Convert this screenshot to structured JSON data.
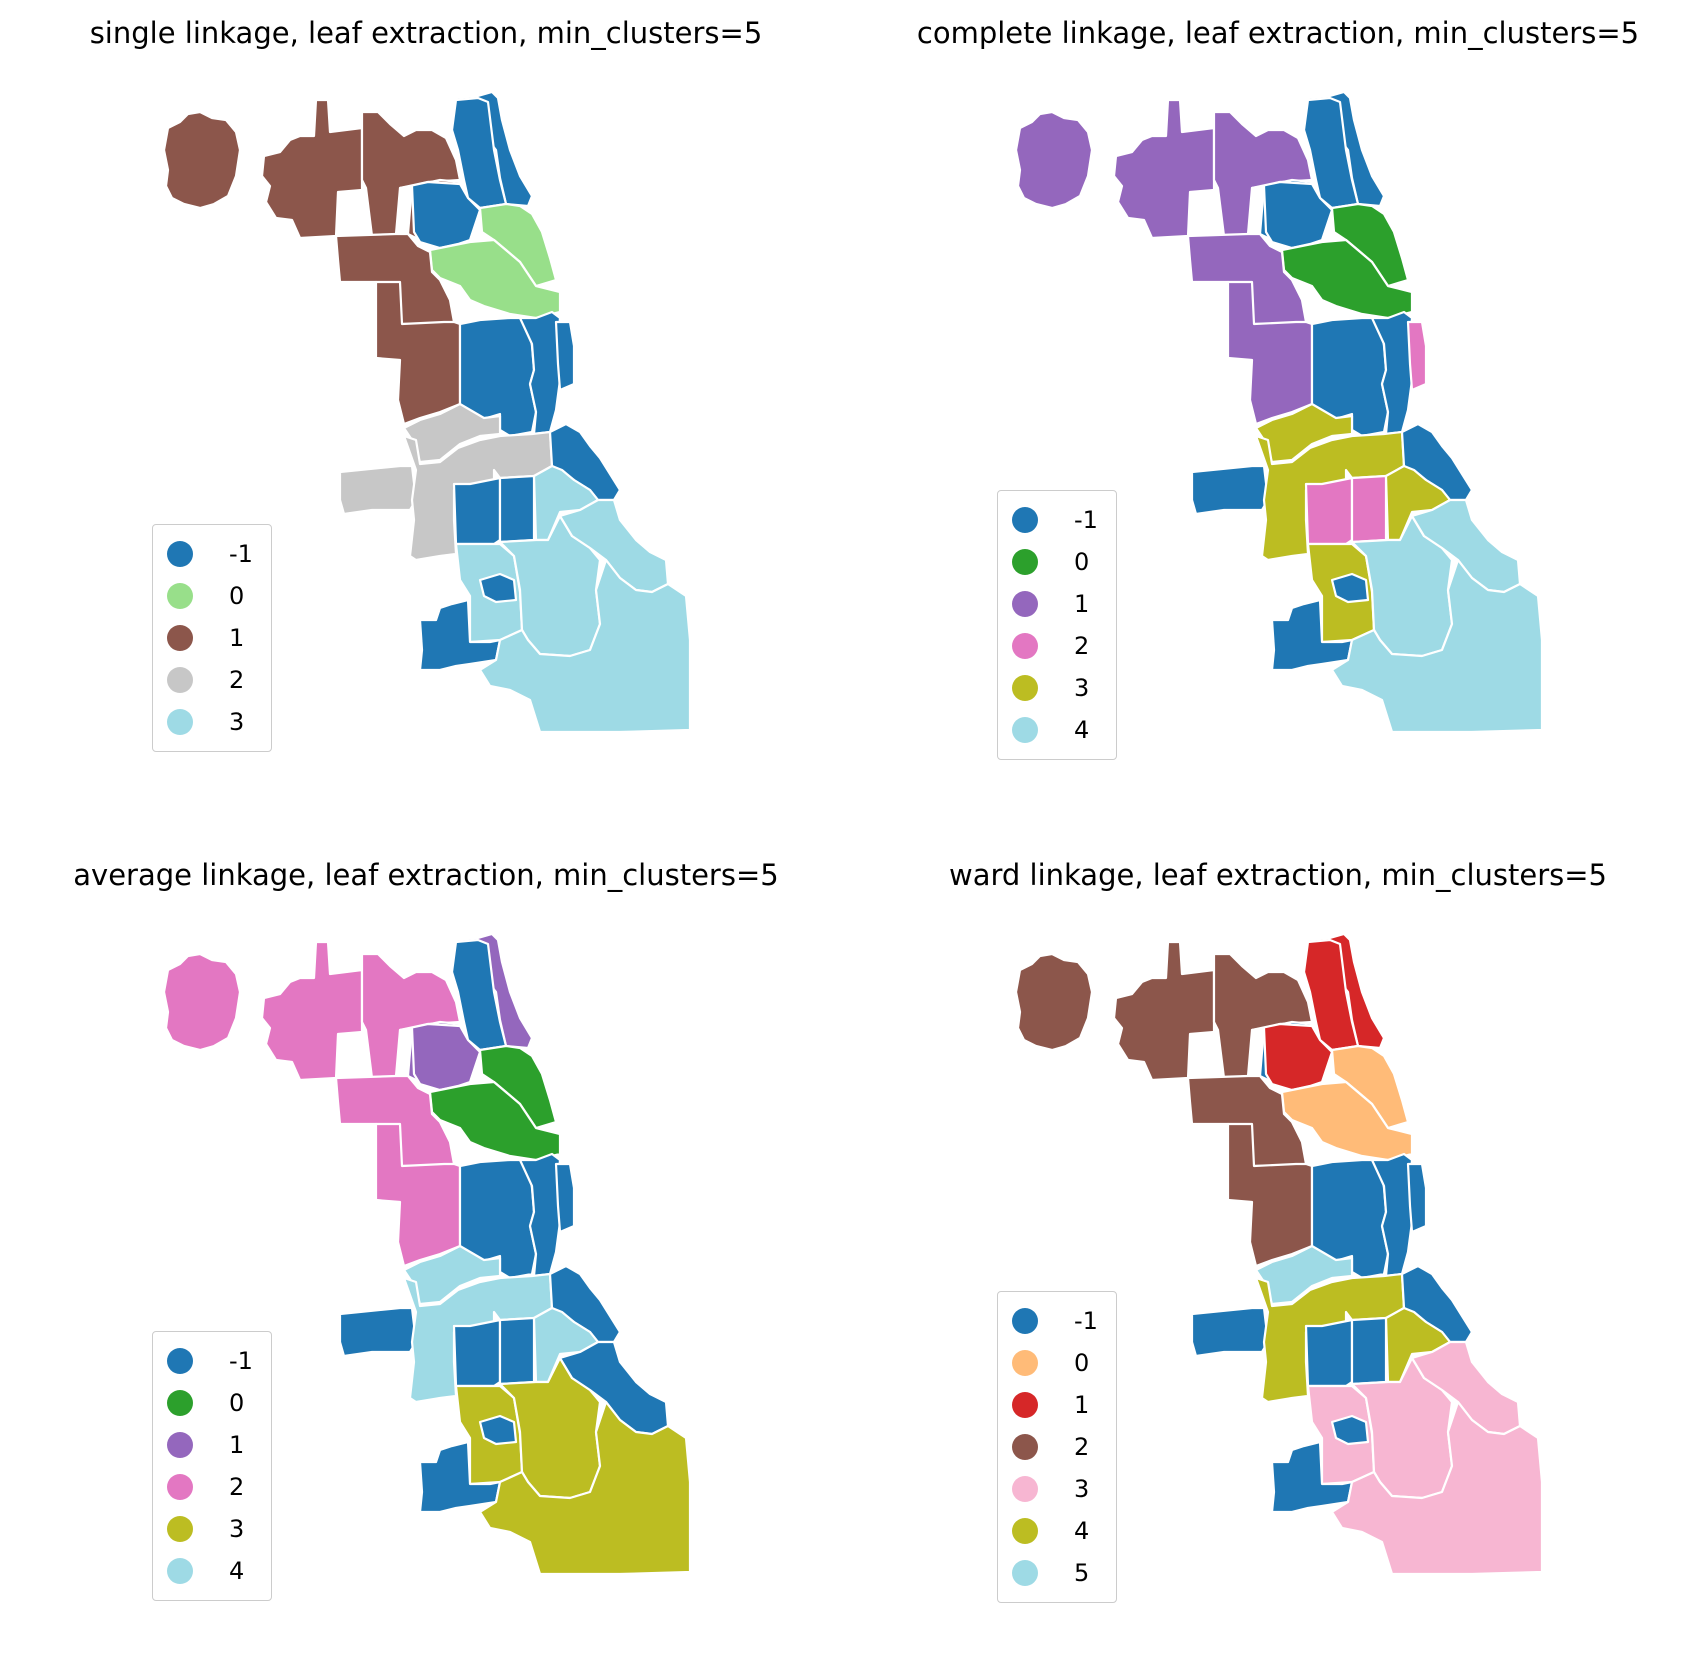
{
  "palette": {
    "-1": "#1f77b4",
    "green_light": "#98df8a",
    "green": "#2ca02c",
    "brown": "#8c564b",
    "grey": "#c7c7c7",
    "cyan": "#9edae5",
    "purple": "#9467bd",
    "pink": "#e377c2",
    "olive": "#bcbd22",
    "orange_light": "#ffbb78",
    "red": "#d62728",
    "pink_light": "#f7b6d2"
  },
  "panels": [
    {
      "title": "single linkage, leaf extraction, min_clusters=5",
      "legend": [
        {
          "label": "-1",
          "color": "#1f77b4"
        },
        {
          "label": "0",
          "color": "#98df8a"
        },
        {
          "label": "1",
          "color": "#8c564b"
        },
        {
          "label": "2",
          "color": "#c7c7c7"
        },
        {
          "label": "3",
          "color": "#9edae5"
        }
      ],
      "regions": {
        "ohare": "#8c564b",
        "nw_west": "#8c564b",
        "nw_mid": "#8c564b",
        "nw_inner": "#8c564b",
        "far_north_lake": "#1f77b4",
        "north_mid": "#1f77b4",
        "north_lake": "#98df8a",
        "north_central_band": "#98df8a",
        "north_inner": "#1f77b4",
        "west_upper": "#8c564b",
        "west_mid": "#8c564b",
        "west_side": "#1f77b4",
        "central": "#1f77b4",
        "loop_lake": "#1f77b4",
        "swest_upper": "#c7c7c7",
        "swest_arm": "#c7c7c7",
        "swest_mid": "#c7c7c7",
        "south_mid_west": "#1f77b4",
        "south_mid_center": "#1f77b4",
        "south_lake_mid": "#1f77b4",
        "south_mid_east": "#9edae5",
        "south_lower_west": "#9edae5",
        "south_lower_mid": "#9edae5",
        "south_lower_east": "#9edae5",
        "far_south_west": "#1f77b4",
        "far_south_east": "#9edae5",
        "far_south_stem": "#1f77b4"
      }
    },
    {
      "title": "complete linkage, leaf extraction, min_clusters=5",
      "legend": [
        {
          "label": "-1",
          "color": "#1f77b4"
        },
        {
          "label": "0",
          "color": "#2ca02c"
        },
        {
          "label": "1",
          "color": "#9467bd"
        },
        {
          "label": "2",
          "color": "#e377c2"
        },
        {
          "label": "3",
          "color": "#bcbd22"
        },
        {
          "label": "4",
          "color": "#9edae5"
        }
      ],
      "regions": {
        "ohare": "#9467bd",
        "nw_west": "#9467bd",
        "nw_mid": "#9467bd",
        "nw_inner": "#1f77b4",
        "far_north_lake": "#1f77b4",
        "north_mid": "#1f77b4",
        "north_lake": "#2ca02c",
        "north_central_band": "#2ca02c",
        "north_inner": "#1f77b4",
        "west_upper": "#9467bd",
        "west_mid": "#9467bd",
        "west_side": "#1f77b4",
        "central": "#1f77b4",
        "loop_lake": "#e377c2",
        "swest_upper": "#bcbd22",
        "swest_arm": "#1f77b4",
        "swest_mid": "#bcbd22",
        "south_mid_west": "#e377c2",
        "south_mid_center": "#e377c2",
        "south_lake_mid": "#1f77b4",
        "south_mid_east": "#bcbd22",
        "south_lower_west": "#bcbd22",
        "south_lower_mid": "#9edae5",
        "south_lower_east": "#9edae5",
        "far_south_west": "#1f77b4",
        "far_south_east": "#9edae5",
        "far_south_stem": "#1f77b4"
      }
    },
    {
      "title": "average linkage, leaf extraction, min_clusters=5",
      "legend": [
        {
          "label": "-1",
          "color": "#1f77b4"
        },
        {
          "label": "0",
          "color": "#2ca02c"
        },
        {
          "label": "1",
          "color": "#9467bd"
        },
        {
          "label": "2",
          "color": "#e377c2"
        },
        {
          "label": "3",
          "color": "#bcbd22"
        },
        {
          "label": "4",
          "color": "#9edae5"
        }
      ],
      "regions": {
        "ohare": "#e377c2",
        "nw_west": "#e377c2",
        "nw_mid": "#e377c2",
        "nw_inner": "#9467bd",
        "far_north_lake": "#9467bd",
        "north_mid": "#1f77b4",
        "north_lake": "#2ca02c",
        "north_central_band": "#2ca02c",
        "north_inner": "#9467bd",
        "west_upper": "#e377c2",
        "west_mid": "#e377c2",
        "west_side": "#1f77b4",
        "central": "#1f77b4",
        "loop_lake": "#1f77b4",
        "swest_upper": "#9edae5",
        "swest_arm": "#1f77b4",
        "swest_mid": "#9edae5",
        "south_mid_west": "#1f77b4",
        "south_mid_center": "#1f77b4",
        "south_lake_mid": "#1f77b4",
        "south_mid_east": "#9edae5",
        "south_lower_west": "#bcbd22",
        "south_lower_mid": "#bcbd22",
        "south_lower_east": "#1f77b4",
        "far_south_west": "#1f77b4",
        "far_south_east": "#bcbd22",
        "far_south_stem": "#1f77b4"
      }
    },
    {
      "title": "ward linkage, leaf extraction, min_clusters=5",
      "legend": [
        {
          "label": "-1",
          "color": "#1f77b4"
        },
        {
          "label": "0",
          "color": "#ffbb78"
        },
        {
          "label": "1",
          "color": "#d62728"
        },
        {
          "label": "2",
          "color": "#8c564b"
        },
        {
          "label": "3",
          "color": "#f7b6d2"
        },
        {
          "label": "4",
          "color": "#bcbd22"
        },
        {
          "label": "5",
          "color": "#9edae5"
        }
      ],
      "regions": {
        "ohare": "#8c564b",
        "nw_west": "#8c564b",
        "nw_mid": "#8c564b",
        "nw_inner": "#1f77b4",
        "far_north_lake": "#d62728",
        "north_mid": "#d62728",
        "north_lake": "#ffbb78",
        "north_central_band": "#ffbb78",
        "north_inner": "#d62728",
        "west_upper": "#8c564b",
        "west_mid": "#8c564b",
        "west_side": "#1f77b4",
        "central": "#1f77b4",
        "loop_lake": "#1f77b4",
        "swest_upper": "#9edae5",
        "swest_arm": "#1f77b4",
        "swest_mid": "#bcbd22",
        "south_mid_west": "#1f77b4",
        "south_mid_center": "#1f77b4",
        "south_lake_mid": "#1f77b4",
        "south_mid_east": "#bcbd22",
        "south_lower_west": "#f7b6d2",
        "south_lower_mid": "#f7b6d2",
        "south_lower_east": "#f7b6d2",
        "far_south_west": "#1f77b4",
        "far_south_east": "#f7b6d2",
        "far_south_stem": "#1f77b4"
      }
    }
  ]
}
